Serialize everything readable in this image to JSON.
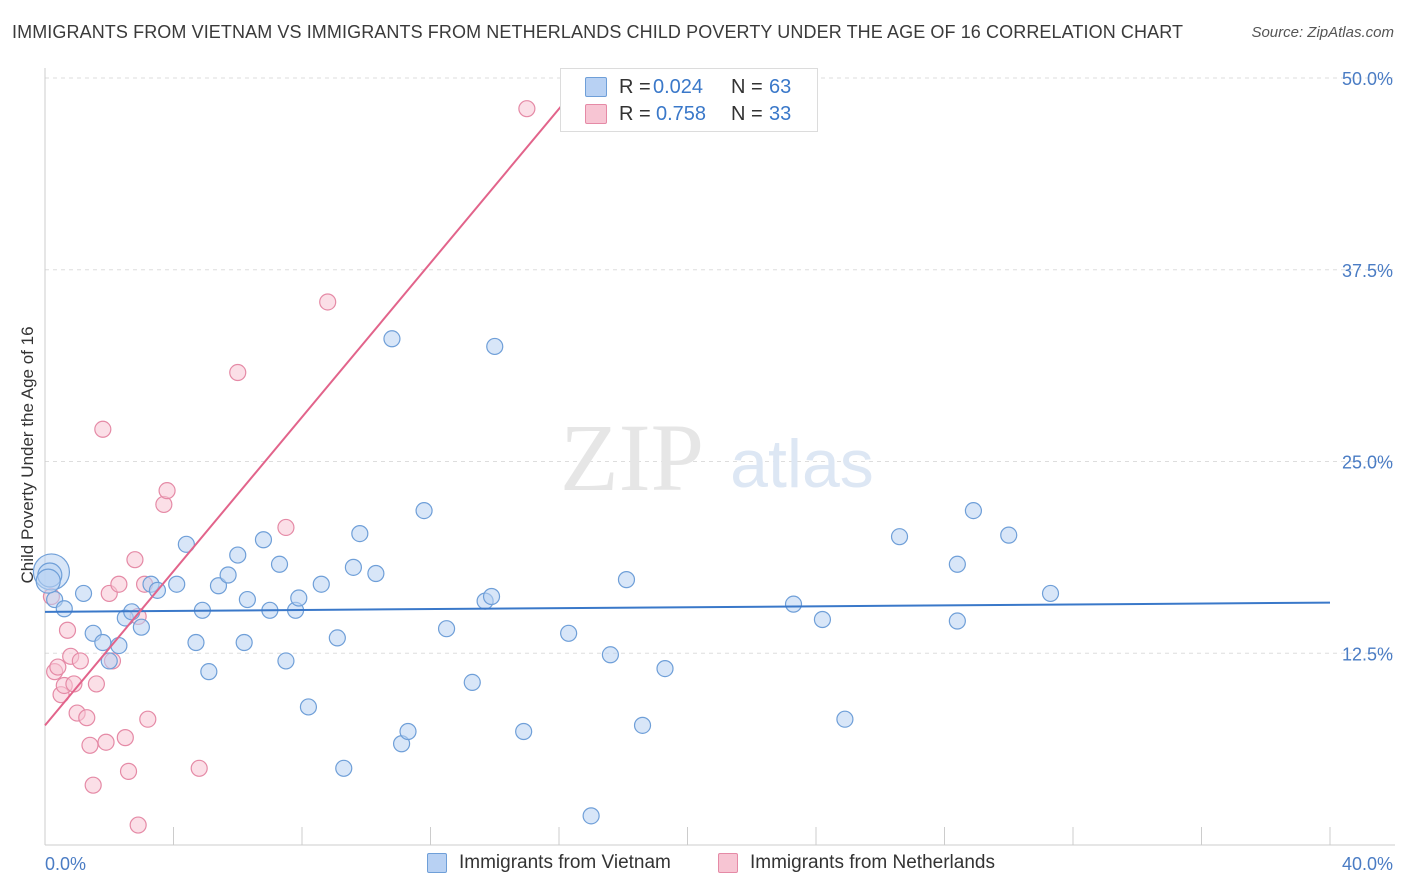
{
  "title": "IMMIGRANTS FROM VIETNAM VS IMMIGRANTS FROM NETHERLANDS CHILD POVERTY UNDER THE AGE OF 16 CORRELATION CHART",
  "source": "Source: ZipAtlas.com",
  "watermark": {
    "zip": "ZIP",
    "atlas": "atlas"
  },
  "legend": {
    "vietnam": {
      "r_label": "R = ",
      "r_value": "0.024",
      "n_label": "N = ",
      "n_value": "63"
    },
    "netherlands": {
      "r_label": "R = ",
      "r_value": "0.758",
      "n_label": "N = ",
      "n_value": "33"
    }
  },
  "colors": {
    "vietnam_fill": "#b8d1f3",
    "vietnam_stroke": "#6f9fd8",
    "vietnam_line": "#3a78c9",
    "netherlands_fill": "#f7c5d3",
    "netherlands_stroke": "#e58aa6",
    "netherlands_line": "#e2648b",
    "tick_label": "#4a7cc4",
    "grid": "#dddddd"
  },
  "chart_data": {
    "type": "scatter",
    "title": "IMMIGRANTS FROM VIETNAM VS IMMIGRANTS FROM NETHERLANDS CHILD POVERTY UNDER THE AGE OF 16 CORRELATION CHART",
    "xlabel": "",
    "ylabel": "Child Poverty Under the Age of 16",
    "xlim": [
      0,
      40
    ],
    "ylim": [
      0,
      50
    ],
    "x_tick_labels": [
      "0.0%",
      "40.0%"
    ],
    "y_ticks": [
      12.5,
      25.0,
      37.5,
      50.0
    ],
    "y_tick_labels": [
      "12.5%",
      "25.0%",
      "37.5%",
      "50.0%"
    ],
    "grid": "horizontal dashed",
    "legend_position": "top-center",
    "series": [
      {
        "name": "Immigrants from Vietnam",
        "color": "#b8d1f3",
        "trend": {
          "x": [
            0,
            40
          ],
          "y": [
            15.2,
            15.8
          ]
        },
        "points": [
          [
            0.2,
            17.8
          ],
          [
            0.3,
            16.0
          ],
          [
            0.6,
            15.4
          ],
          [
            1.2,
            16.4
          ],
          [
            1.5,
            13.8
          ],
          [
            1.8,
            13.2
          ],
          [
            2.0,
            12.0
          ],
          [
            2.3,
            13.0
          ],
          [
            2.5,
            14.8
          ],
          [
            2.7,
            15.2
          ],
          [
            3.0,
            14.2
          ],
          [
            3.3,
            17.0
          ],
          [
            3.5,
            16.6
          ],
          [
            4.1,
            17.0
          ],
          [
            4.4,
            19.6
          ],
          [
            4.7,
            13.2
          ],
          [
            4.9,
            15.3
          ],
          [
            5.1,
            11.3
          ],
          [
            5.4,
            16.9
          ],
          [
            5.7,
            17.6
          ],
          [
            6.0,
            18.9
          ],
          [
            6.2,
            13.2
          ],
          [
            6.3,
            16.0
          ],
          [
            6.8,
            19.9
          ],
          [
            7.0,
            15.3
          ],
          [
            7.3,
            18.3
          ],
          [
            7.5,
            12.0
          ],
          [
            7.8,
            15.3
          ],
          [
            7.9,
            16.1
          ],
          [
            8.2,
            9.0
          ],
          [
            8.6,
            17.0
          ],
          [
            9.1,
            13.5
          ],
          [
            9.3,
            5.0
          ],
          [
            9.6,
            18.1
          ],
          [
            9.8,
            20.3
          ],
          [
            10.3,
            17.7
          ],
          [
            10.8,
            33.0
          ],
          [
            11.1,
            6.6
          ],
          [
            11.3,
            7.4
          ],
          [
            11.8,
            21.8
          ],
          [
            12.5,
            14.1
          ],
          [
            13.3,
            10.6
          ],
          [
            13.7,
            15.9
          ],
          [
            13.9,
            16.2
          ],
          [
            14.0,
            32.5
          ],
          [
            14.9,
            7.4
          ],
          [
            16.3,
            13.8
          ],
          [
            17.0,
            1.9
          ],
          [
            17.6,
            12.4
          ],
          [
            18.1,
            17.3
          ],
          [
            18.6,
            7.8
          ],
          [
            19.3,
            11.5
          ],
          [
            23.3,
            15.7
          ],
          [
            24.2,
            14.7
          ],
          [
            24.9,
            8.2
          ],
          [
            26.6,
            20.1
          ],
          [
            28.4,
            18.3
          ],
          [
            28.4,
            14.6
          ],
          [
            28.9,
            21.8
          ],
          [
            30.0,
            20.2
          ],
          [
            31.3,
            16.4
          ],
          [
            0.15,
            17.6
          ],
          [
            0.1,
            17.2
          ]
        ]
      },
      {
        "name": "Immigrants from Netherlands",
        "color": "#f7c5d3",
        "trend": {
          "x": [
            0,
            16.8
          ],
          "y": [
            7.8,
            50.0
          ]
        },
        "points": [
          [
            0.2,
            16.2
          ],
          [
            0.3,
            11.3
          ],
          [
            0.4,
            11.6
          ],
          [
            0.5,
            9.8
          ],
          [
            0.6,
            10.4
          ],
          [
            0.7,
            14.0
          ],
          [
            0.8,
            12.3
          ],
          [
            0.9,
            10.5
          ],
          [
            1.0,
            8.6
          ],
          [
            1.1,
            12.0
          ],
          [
            1.3,
            8.3
          ],
          [
            1.4,
            6.5
          ],
          [
            1.6,
            10.5
          ],
          [
            1.8,
            27.1
          ],
          [
            1.9,
            6.7
          ],
          [
            2.0,
            16.4
          ],
          [
            2.1,
            12.0
          ],
          [
            2.3,
            17.0
          ],
          [
            2.5,
            7.0
          ],
          [
            2.6,
            4.8
          ],
          [
            2.8,
            18.6
          ],
          [
            2.9,
            14.9
          ],
          [
            3.1,
            17.0
          ],
          [
            3.2,
            8.2
          ],
          [
            3.7,
            22.2
          ],
          [
            3.8,
            23.1
          ],
          [
            4.8,
            5.0
          ],
          [
            6.0,
            30.8
          ],
          [
            7.5,
            20.7
          ],
          [
            8.8,
            35.4
          ],
          [
            15.0,
            48.0
          ],
          [
            1.5,
            3.9
          ],
          [
            2.9,
            1.3
          ]
        ]
      }
    ]
  },
  "bottom_legend": {
    "vietnam_label": "Immigrants from Vietnam",
    "netherlands_label": "Immigrants from Netherlands"
  }
}
